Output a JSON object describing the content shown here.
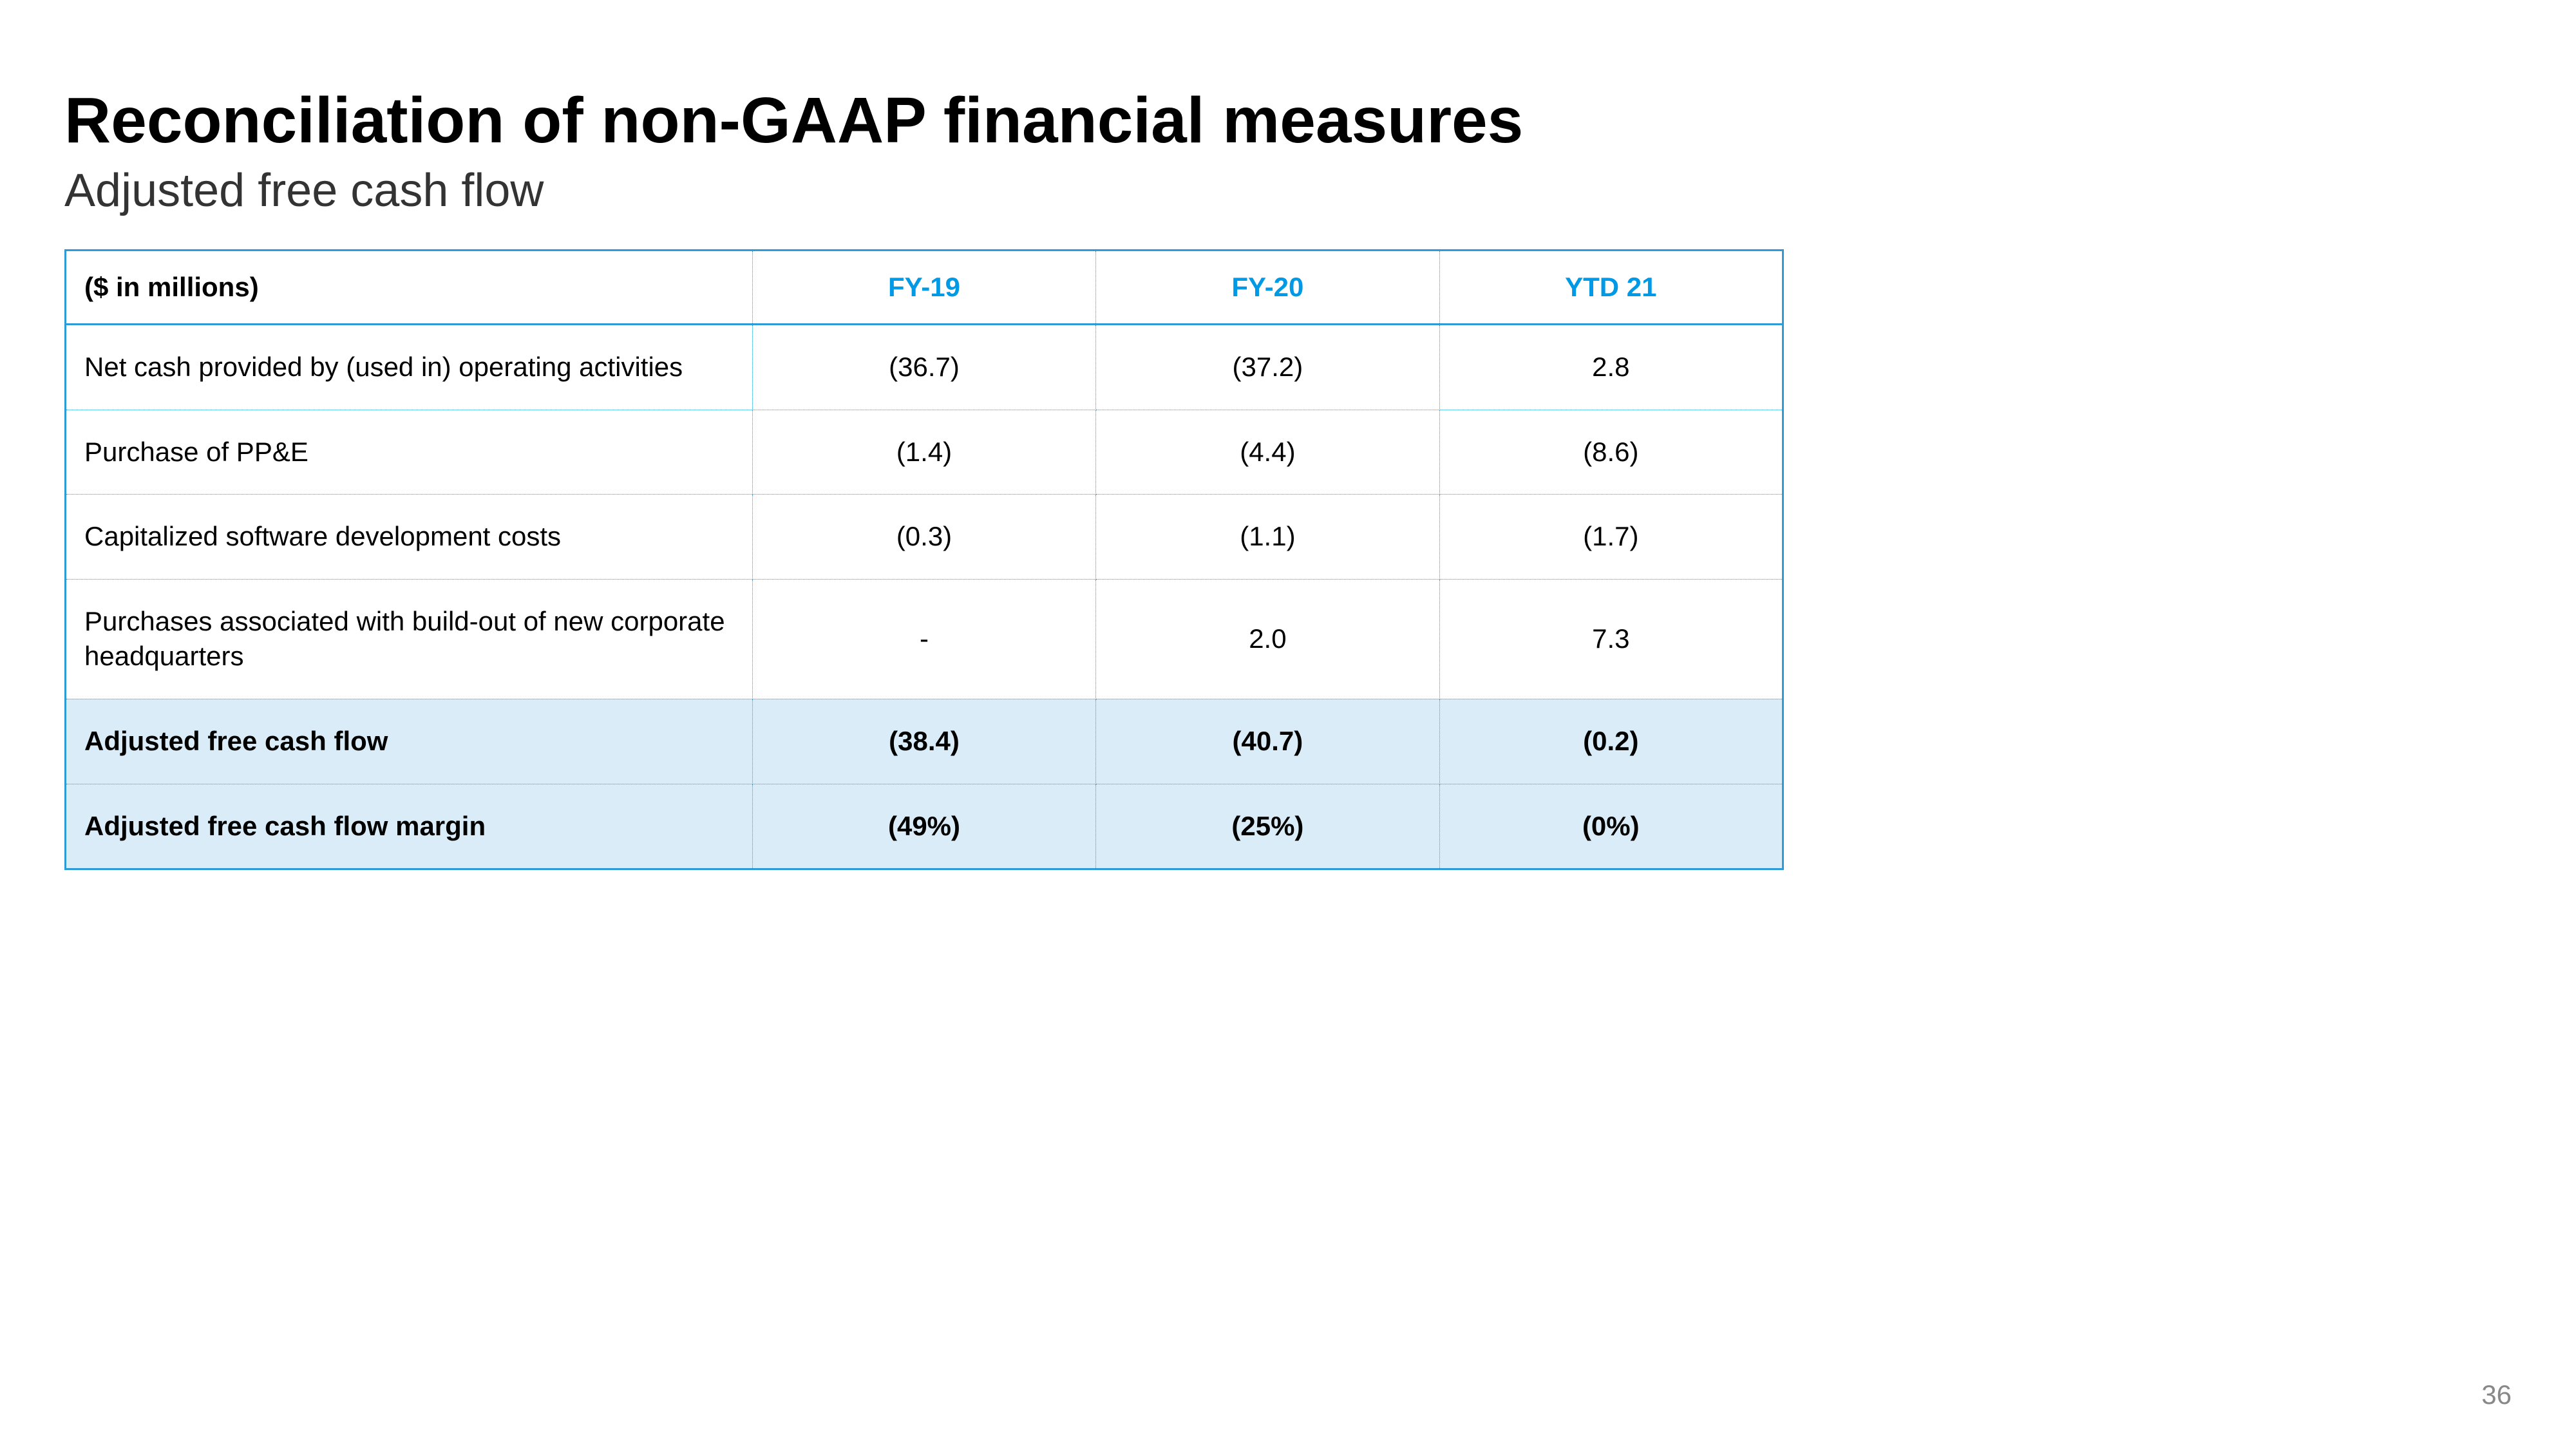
{
  "title": "Reconciliation of non-GAAP financial measures",
  "subtitle": "Adjusted free cash flow",
  "page_number": "36",
  "table": {
    "header_label": "($ in millions)",
    "columns": [
      "FY-19",
      "FY-20",
      "YTD 21"
    ],
    "rows": [
      {
        "label": "Net cash provided by (used in) operating activities",
        "values": [
          "(36.7)",
          "(37.2)",
          "2.8"
        ],
        "highlighted": false
      },
      {
        "label": "Purchase of PP&E",
        "values": [
          "(1.4)",
          "(4.4)",
          "(8.6)"
        ],
        "highlighted": false
      },
      {
        "label": "Capitalized software development costs",
        "values": [
          "(0.3)",
          "(1.1)",
          "(1.7)"
        ],
        "highlighted": false
      },
      {
        "label": "Purchases associated with build-out of new corporate headquarters",
        "values": [
          "-",
          "2.0",
          "7.3"
        ],
        "highlighted": false
      },
      {
        "label": "Adjusted free cash flow",
        "values": [
          "(38.4)",
          "(40.7)",
          "(0.2)"
        ],
        "highlighted": true
      },
      {
        "label": "Adjusted free cash flow margin",
        "values": [
          "(49%)",
          "(25%)",
          "(0%)"
        ],
        "highlighted": true
      }
    ],
    "border_color": "#2e9bd6",
    "header_text_color": "#0099e5",
    "highlight_bg_color": "#d9ecf8",
    "background_color": "#ffffff"
  }
}
